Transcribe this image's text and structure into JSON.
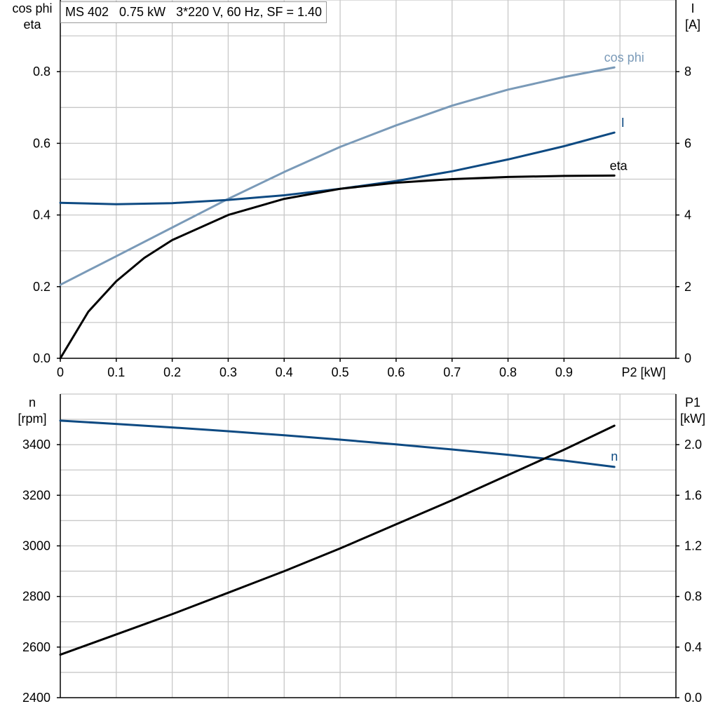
{
  "title": "MS 402   0.75 kW   3*220 V, 60 Hz, SF = 1.40",
  "colors": {
    "cos_phi": "#7a9ab8",
    "current": "#0e4a82",
    "eta": "#000000",
    "n": "#0e4a82",
    "p1": "#000000",
    "grid": "#c8c8c8"
  },
  "chart_data": [
    {
      "type": "line",
      "xlabel": "P2 [kW]",
      "ylabel_left": [
        "cos phi",
        "eta"
      ],
      "ylabel_right": [
        "I",
        "[A]"
      ],
      "xlim": [
        0,
        1.1
      ],
      "ylim_left": [
        0,
        1.0
      ],
      "ylim_right": [
        0,
        10
      ],
      "x_ticks": [
        "0",
        "0.1",
        "0.2",
        "0.3",
        "0.4",
        "0.5",
        "0.6",
        "0.7",
        "0.8",
        "0.9"
      ],
      "y_ticks_left": [
        "0.0",
        "0.2",
        "0.4",
        "0.6",
        "0.8"
      ],
      "y_ticks_right": [
        "0",
        "2",
        "4",
        "6",
        "8"
      ],
      "grid": true,
      "series": [
        {
          "name": "cos phi",
          "axis": "left",
          "x": [
            0,
            0.1,
            0.2,
            0.3,
            0.4,
            0.5,
            0.6,
            0.7,
            0.8,
            0.9,
            0.99
          ],
          "y": [
            0.205,
            0.285,
            0.365,
            0.445,
            0.52,
            0.59,
            0.65,
            0.705,
            0.75,
            0.785,
            0.812
          ]
        },
        {
          "name": "I",
          "axis": "right",
          "x": [
            0,
            0.1,
            0.2,
            0.3,
            0.4,
            0.5,
            0.6,
            0.7,
            0.8,
            0.9,
            0.99
          ],
          "y": [
            4.34,
            4.3,
            4.33,
            4.42,
            4.55,
            4.73,
            4.95,
            5.22,
            5.55,
            5.92,
            6.3
          ]
        },
        {
          "name": "eta",
          "axis": "left",
          "x": [
            0,
            0.05,
            0.1,
            0.15,
            0.2,
            0.3,
            0.4,
            0.5,
            0.6,
            0.7,
            0.8,
            0.9,
            0.99
          ],
          "y": [
            0.0,
            0.13,
            0.215,
            0.28,
            0.33,
            0.4,
            0.445,
            0.473,
            0.49,
            0.5,
            0.506,
            0.509,
            0.51
          ]
        }
      ]
    },
    {
      "type": "line",
      "xlim": [
        0,
        1.1
      ],
      "ylabel_left": [
        "n",
        "[rpm]"
      ],
      "ylabel_right": [
        "P1",
        "[kW]"
      ],
      "ylim_left": [
        2400,
        3600
      ],
      "ylim_right": [
        0,
        2.4
      ],
      "y_ticks_left": [
        "2400",
        "2600",
        "2800",
        "3000",
        "3200",
        "3400"
      ],
      "y_ticks_right": [
        "0.0",
        "0.4",
        "0.8",
        "1.2",
        "1.6",
        "2.0"
      ],
      "grid": true,
      "series": [
        {
          "name": "n",
          "axis": "left",
          "x": [
            0,
            0.1,
            0.2,
            0.3,
            0.4,
            0.5,
            0.6,
            0.7,
            0.8,
            0.9,
            0.99
          ],
          "y": [
            3495,
            3482,
            3468,
            3453,
            3437,
            3420,
            3401,
            3381,
            3360,
            3337,
            3312
          ]
        },
        {
          "name": "",
          "axis": "right",
          "x": [
            0,
            0.1,
            0.2,
            0.3,
            0.4,
            0.5,
            0.6,
            0.7,
            0.8,
            0.9,
            0.99
          ],
          "y": [
            0.34,
            0.5,
            0.66,
            0.83,
            1.0,
            1.18,
            1.37,
            1.56,
            1.76,
            1.96,
            2.15
          ]
        }
      ]
    }
  ]
}
